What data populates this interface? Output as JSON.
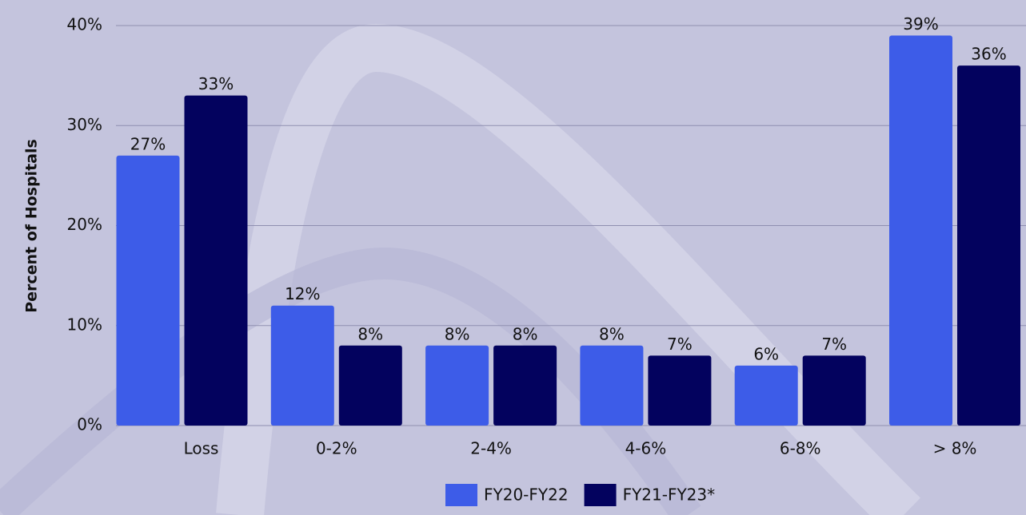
{
  "chart_data": {
    "type": "bar",
    "ylabel": "Percent of Hospitals",
    "categories": [
      "Loss",
      "0-2%",
      "2-4%",
      "4-6%",
      "6-8%",
      "> 8%"
    ],
    "series": [
      {
        "name": "FY20-FY22",
        "color": "#3d5ce8",
        "values": [
          27,
          12,
          8,
          8,
          6,
          39
        ],
        "value_labels": [
          "27%",
          "12%",
          "8%",
          "8%",
          "6%",
          "39%"
        ]
      },
      {
        "name": "FY21-FY23*",
        "color": "#03025e",
        "values": [
          33,
          8,
          8,
          7,
          7,
          36
        ],
        "value_labels": [
          "33%",
          "8%",
          "8%",
          "7%",
          "7%",
          "36%"
        ]
      }
    ],
    "ylim": [
      0,
      40
    ],
    "yticks": [
      {
        "value": 0,
        "label": "0%"
      },
      {
        "value": 10,
        "label": "10%"
      },
      {
        "value": 20,
        "label": "20%"
      },
      {
        "value": 30,
        "label": "30%"
      },
      {
        "value": 40,
        "label": "40%"
      }
    ],
    "grid": true,
    "legend": "bottom"
  }
}
